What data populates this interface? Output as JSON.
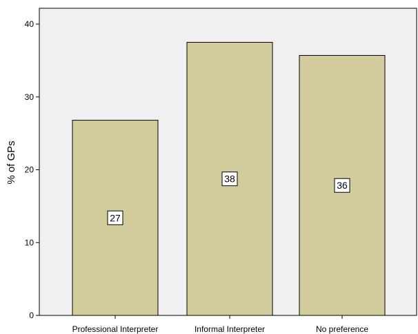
{
  "chart_data": {
    "type": "bar",
    "ylabel": "% of GPs",
    "xlabel": "",
    "categories": [
      "Professional Interpreter",
      "Informal Interpreter",
      "No preference"
    ],
    "values": [
      26.8,
      37.5,
      35.7
    ],
    "data_labels": [
      "27",
      "38",
      "36"
    ],
    "ylim": [
      0,
      42
    ],
    "yticks": [
      0,
      10,
      20,
      30,
      40
    ],
    "ytick_labels": [
      "0",
      "10",
      "20",
      "30",
      "40"
    ],
    "grid": false,
    "plot_background": "#f0f0f0",
    "bar_fill": "#d2cc9c",
    "bar_stroke": "#000000"
  }
}
